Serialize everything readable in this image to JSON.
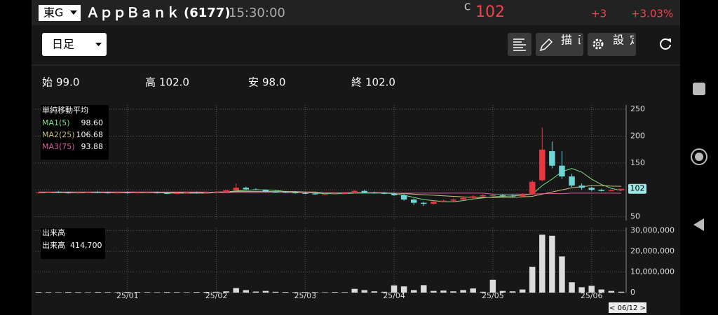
{
  "header": {
    "market": "東G",
    "name": "ＡｐｐＢａｎｋ",
    "code": "(6177)",
    "time": "15:30:00",
    "price_flag": "C",
    "price": "102",
    "change": "+3",
    "change_pct": "+3.03%"
  },
  "toolbar": {
    "period": "日足",
    "draw": "描画",
    "settings": "設定"
  },
  "ohlc": [
    {
      "label": "始",
      "value": "99.0"
    },
    {
      "label": "高",
      "value": "102.0"
    },
    {
      "label": "安",
      "value": "98.0"
    },
    {
      "label": "終",
      "value": "102.0"
    }
  ],
  "chart_data": [
    {
      "type": "candlestick",
      "legend_title": "単純移動平均",
      "up_color": "#e8353f",
      "down_color": "#6fd6d6",
      "grid": true,
      "ylim": [
        43,
        258
      ],
      "yticks": [
        50,
        100,
        150,
        200,
        250
      ],
      "open": [
        95,
        95,
        96,
        95,
        94,
        95,
        96,
        95,
        94,
        95,
        94,
        95,
        95,
        94,
        93,
        94,
        95,
        94,
        95,
        96,
        99,
        104,
        101,
        100,
        97,
        96,
        95,
        94,
        93,
        92,
        92,
        93,
        94,
        98,
        95,
        94,
        93,
        90,
        82,
        76,
        74,
        78,
        80,
        82,
        85,
        88,
        90,
        90,
        89,
        88,
        92,
        118,
        172,
        145,
        125,
        108,
        104,
        100,
        98,
        99
      ],
      "high": [
        97,
        97,
        98,
        97,
        96,
        97,
        98,
        97,
        96,
        97,
        96,
        97,
        97,
        96,
        95,
        96,
        97,
        96,
        97,
        100,
        112,
        106,
        103,
        101,
        99,
        98,
        97,
        96,
        95,
        94,
        95,
        96,
        100,
        100,
        97,
        96,
        95,
        92,
        84,
        78,
        80,
        82,
        84,
        87,
        90,
        92,
        92,
        92,
        91,
        94,
        118,
        216,
        190,
        172,
        130,
        112,
        106,
        102,
        101,
        102
      ],
      "low": [
        93,
        94,
        94,
        93,
        93,
        94,
        94,
        93,
        93,
        93,
        93,
        94,
        93,
        92,
        92,
        93,
        93,
        93,
        94,
        95,
        98,
        100,
        99,
        96,
        95,
        94,
        93,
        92,
        91,
        90,
        91,
        92,
        93,
        94,
        93,
        92,
        89,
        80,
        72,
        70,
        73,
        77,
        79,
        81,
        84,
        86,
        88,
        87,
        86,
        87,
        90,
        116,
        140,
        120,
        105,
        100,
        98,
        97,
        97,
        98
      ],
      "close": [
        95,
        96,
        95,
        94,
        95,
        96,
        95,
        94,
        95,
        94,
        95,
        95,
        94,
        93,
        94,
        95,
        94,
        95,
        96,
        99,
        104,
        101,
        100,
        97,
        96,
        95,
        94,
        93,
        92,
        92,
        93,
        94,
        98,
        95,
        94,
        93,
        90,
        82,
        76,
        74,
        78,
        80,
        82,
        85,
        88,
        90,
        90,
        89,
        88,
        92,
        115,
        175,
        145,
        125,
        108,
        104,
        100,
        98,
        99,
        102
      ],
      "series": [
        {
          "name": "MA1(5)",
          "legend_value": "98.60",
          "color": "#7fe08a",
          "values": [
            95,
            95,
            95,
            95,
            95,
            95,
            95,
            95,
            95,
            95,
            95,
            95,
            95,
            94,
            94,
            94,
            94,
            94,
            95,
            96,
            98,
            99,
            100,
            100,
            99,
            97,
            96,
            95,
            94,
            93,
            93,
            93,
            94,
            94,
            94,
            94,
            93,
            90,
            86,
            82,
            80,
            78,
            78,
            80,
            83,
            85,
            87,
            88,
            89,
            90,
            92,
            108,
            120,
            134,
            140,
            133,
            120,
            110,
            103,
            98.6
          ]
        },
        {
          "name": "MA2(25)",
          "legend_value": "106.68",
          "color": "#c9c27a",
          "values": [
            95,
            95,
            95,
            95,
            95,
            95,
            95,
            95,
            95,
            95,
            95,
            95,
            95,
            95,
            95,
            95,
            95,
            95,
            96,
            96,
            97,
            97,
            97,
            97,
            97,
            97,
            97,
            96,
            96,
            95,
            95,
            95,
            95,
            95,
            95,
            95,
            94,
            93,
            92,
            91,
            90,
            89,
            88,
            87,
            86,
            86,
            86,
            86,
            86,
            87,
            88,
            92,
            96,
            100,
            104,
            106,
            108,
            108,
            107,
            106.68
          ]
        },
        {
          "name": "MA3(75)",
          "legend_value": "93.88",
          "color": "#d8609e",
          "values": [
            96,
            96,
            96,
            96,
            96,
            96,
            96,
            96,
            96,
            96,
            96,
            96,
            96,
            96,
            96,
            96,
            96,
            96,
            95,
            95,
            95,
            95,
            95,
            95,
            95,
            95,
            95,
            95,
            95,
            95,
            95,
            95,
            95,
            95,
            95,
            95,
            94,
            94,
            94,
            94,
            94,
            94,
            94,
            94,
            94,
            94,
            92,
            92,
            92,
            92,
            92,
            93,
            93,
            93,
            94,
            94,
            94,
            94,
            94,
            93.88
          ]
        }
      ]
    },
    {
      "type": "bar",
      "legend_title": "出来高",
      "last_value_label": "414,700",
      "cursor_label": "< 06/12 >",
      "color": "#dcdcdc",
      "grid": true,
      "categories": [
        null,
        null,
        null,
        null,
        null,
        null,
        null,
        null,
        null,
        "25/01",
        null,
        null,
        null,
        null,
        null,
        null,
        null,
        null,
        "25/02",
        null,
        null,
        null,
        null,
        null,
        null,
        null,
        null,
        "25/03",
        null,
        null,
        null,
        null,
        null,
        null,
        null,
        null,
        "25/04",
        null,
        null,
        null,
        null,
        null,
        null,
        null,
        null,
        null,
        "25/05",
        null,
        null,
        null,
        null,
        null,
        null,
        null,
        null,
        null,
        "25/06",
        null,
        null,
        null
      ],
      "values": [
        300000,
        250000,
        200000,
        300000,
        250000,
        200000,
        300000,
        250000,
        200000,
        350000,
        300000,
        250000,
        200000,
        300000,
        250000,
        200000,
        300000,
        350000,
        400000,
        600000,
        2200000,
        1200000,
        500000,
        800000,
        400000,
        300000,
        250000,
        300000,
        250000,
        200000,
        300000,
        250000,
        1800000,
        1200000,
        600000,
        400000,
        3500000,
        3000000,
        1200000,
        3600000,
        800000,
        1000000,
        600000,
        1200000,
        2000000,
        400000,
        6200000,
        800000,
        600000,
        1500000,
        12500000,
        28000000,
        27500000,
        17500000,
        5000000,
        2600000,
        3300000,
        1500000,
        800000,
        414700
      ],
      "ylim": [
        0,
        31500000
      ],
      "yticks": [
        0,
        {
          "value": 10000000,
          "label": "10,000,000"
        },
        {
          "value": 20000000,
          "label": "20,000,000"
        },
        {
          "value": 30000000,
          "label": "30,000,000"
        }
      ]
    }
  ]
}
